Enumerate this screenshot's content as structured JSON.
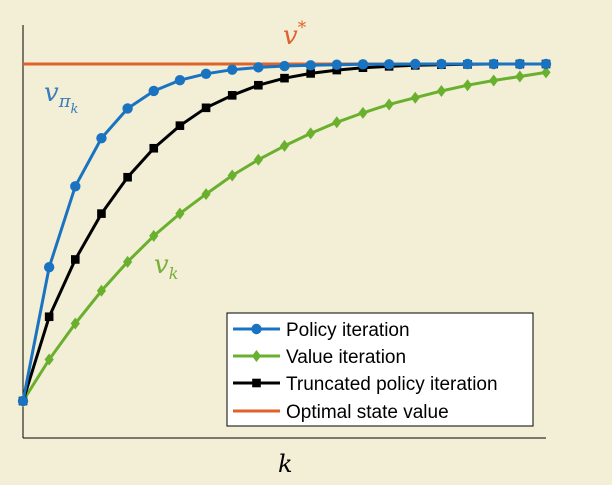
{
  "chart_data": {
    "type": "line",
    "xlabel": "k",
    "ylabel": "",
    "x": [
      0,
      1,
      2,
      3,
      4,
      5,
      6,
      7,
      8,
      9,
      10,
      11,
      12,
      13,
      14,
      15,
      16,
      17,
      18,
      19,
      20
    ],
    "ylim": [
      0,
      1.1
    ],
    "grid": false,
    "legend_position": "bottom-right",
    "annotations": [
      {
        "text": "v*",
        "color": "#e0622a",
        "near": "optimal"
      },
      {
        "text": "vπk",
        "color": "#3a7cbf",
        "near": "policy"
      },
      {
        "text": "vk",
        "color": "#7aae3c",
        "near": "value"
      }
    ],
    "series": [
      {
        "key": "policy",
        "name": "Policy iteration",
        "color": "#1a73c0",
        "marker": "circle",
        "values": [
          0.0,
          0.397,
          0.637,
          0.78,
          0.868,
          0.92,
          0.952,
          0.971,
          0.983,
          0.99,
          0.994,
          0.996,
          0.998,
          0.999,
          0.999,
          1.0,
          1.0,
          1.0,
          1.0,
          1.0,
          1.0
        ]
      },
      {
        "key": "value",
        "name": "Value iteration",
        "color": "#6ab02f",
        "marker": "diamond",
        "values": [
          0.0,
          0.123,
          0.23,
          0.327,
          0.413,
          0.49,
          0.556,
          0.614,
          0.669,
          0.716,
          0.757,
          0.794,
          0.827,
          0.855,
          0.88,
          0.9,
          0.92,
          0.937,
          0.951,
          0.963,
          0.975
        ]
      },
      {
        "key": "truncated",
        "name": "Truncated policy iteration",
        "color": "#000000",
        "marker": "square",
        "values": [
          0.0,
          0.25,
          0.42,
          0.556,
          0.664,
          0.75,
          0.817,
          0.87,
          0.907,
          0.937,
          0.958,
          0.972,
          0.982,
          0.989,
          0.993,
          0.996,
          0.998,
          0.999,
          1.0,
          1.0,
          1.0
        ]
      },
      {
        "key": "optimal",
        "name": "Optimal state value",
        "color": "#e0622a",
        "marker": "none",
        "values": [
          1.0,
          1.0,
          1.0,
          1.0,
          1.0,
          1.0,
          1.0,
          1.0,
          1.0,
          1.0,
          1.0,
          1.0,
          1.0,
          1.0,
          1.0,
          1.0,
          1.0,
          1.0,
          1.0,
          1.0,
          1.0
        ]
      }
    ]
  }
}
